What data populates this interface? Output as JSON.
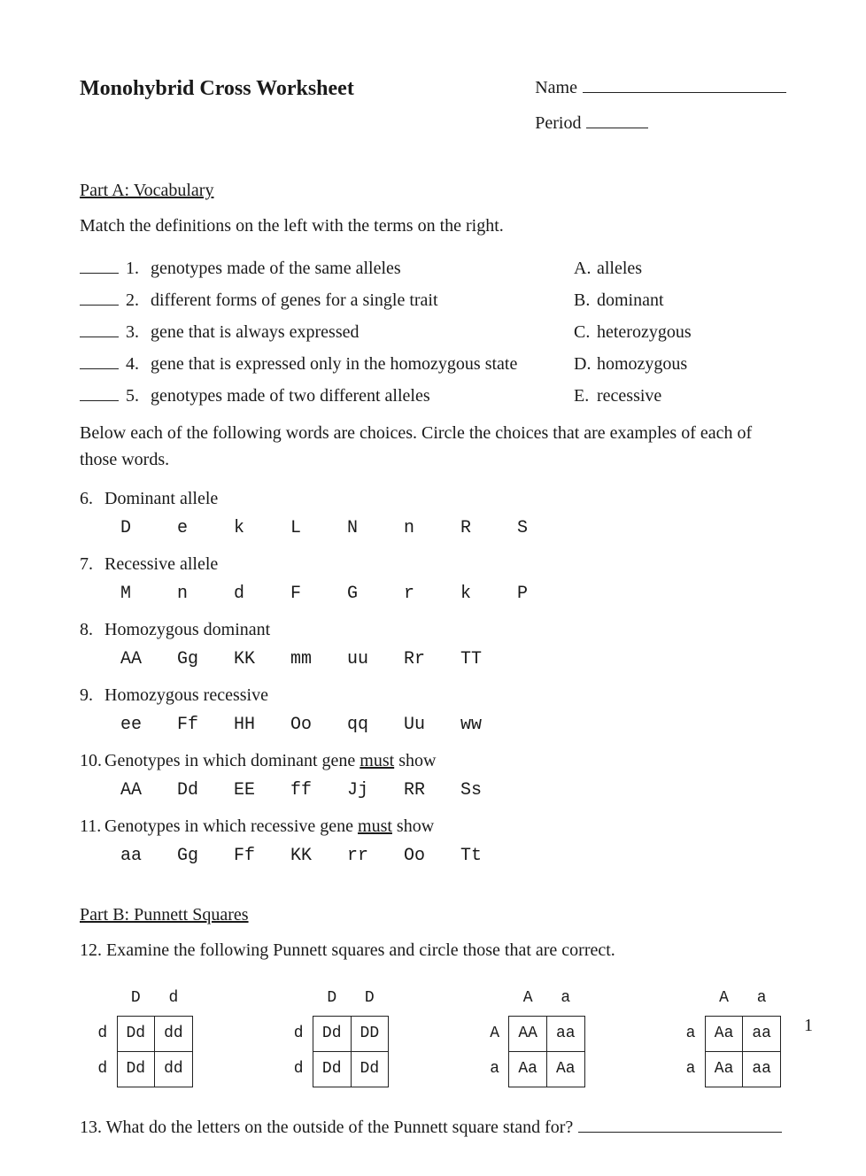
{
  "title": "Monohybrid Cross Worksheet",
  "name_label": "Name",
  "period_label": "Period",
  "partA": {
    "title": "Part A:  Vocabulary"
  },
  "instrA": "Match the definitions on the left with the terms on the right.",
  "defs": [
    {
      "n": "1.",
      "text": "genotypes made of the same alleles"
    },
    {
      "n": "2.",
      "text": "different forms of genes for a single trait"
    },
    {
      "n": "3.",
      "text": "gene that is always expressed"
    },
    {
      "n": "4.",
      "text": "gene that is expressed only in the homozygous state"
    },
    {
      "n": "5.",
      "text": "genotypes made of two different alleles"
    }
  ],
  "terms": [
    {
      "l": "A.",
      "t": "alleles"
    },
    {
      "l": "B.",
      "t": "dominant"
    },
    {
      "l": "C.",
      "t": "heterozygous"
    },
    {
      "l": "D.",
      "t": "homozygous"
    },
    {
      "l": "E.",
      "t": "recessive"
    }
  ],
  "instrB": "Below each of the following words are choices.  Circle the choices that are examples of each of those words.",
  "items": [
    {
      "n": "6.",
      "q": "Dominant allele",
      "choices": [
        "D",
        "e",
        "k",
        "L",
        "N",
        "n",
        "R",
        "S"
      ]
    },
    {
      "n": "7.",
      "q": "Recessive allele",
      "choices": [
        "M",
        "n",
        "d",
        "F",
        "G",
        "r",
        "k",
        "P"
      ]
    },
    {
      "n": "8.",
      "q": "Homozygous dominant",
      "choices": [
        "AA",
        "Gg",
        "KK",
        "mm",
        "uu",
        "Rr",
        "TT"
      ]
    },
    {
      "n": "9.",
      "q": "Homozygous recessive",
      "choices": [
        "ee",
        "Ff",
        "HH",
        "Oo",
        "qq",
        "Uu",
        "ww"
      ]
    },
    {
      "n": "10.",
      "q_pre": "Genotypes in which dominant gene ",
      "q_u": "must",
      "q_post": " show",
      "choices": [
        "AA",
        "Dd",
        "EE",
        "ff",
        "Jj",
        "RR",
        "Ss"
      ]
    },
    {
      "n": "11.",
      "q_pre": "Genotypes in which recessive gene ",
      "q_u": "must",
      "q_post": " show",
      "choices": [
        "aa",
        "Gg",
        "Ff",
        "KK",
        "rr",
        "Oo",
        "Tt"
      ]
    }
  ],
  "partB": {
    "title": "Part B:  Punnett Squares"
  },
  "q12": "12. Examine the following Punnett squares and circle those that are correct.",
  "squares": [
    {
      "top": [
        "D",
        "d"
      ],
      "side": [
        "d",
        "d"
      ],
      "cells": [
        [
          "Dd",
          "dd"
        ],
        [
          "Dd",
          "dd"
        ]
      ]
    },
    {
      "top": [
        "D",
        "D"
      ],
      "side": [
        "d",
        "d"
      ],
      "cells": [
        [
          "Dd",
          "DD"
        ],
        [
          "Dd",
          "Dd"
        ]
      ]
    },
    {
      "top": [
        "A",
        "a"
      ],
      "side": [
        "A",
        "a"
      ],
      "cells": [
        [
          "AA",
          "aa"
        ],
        [
          "Aa",
          "Aa"
        ]
      ]
    },
    {
      "top": [
        "A",
        "a"
      ],
      "side": [
        "a",
        "a"
      ],
      "cells": [
        [
          "Aa",
          "aa"
        ],
        [
          "Aa",
          "aa"
        ]
      ]
    }
  ],
  "q13": "13. What do the letters on the outside of the Punnett square stand for?",
  "page_number": "1"
}
